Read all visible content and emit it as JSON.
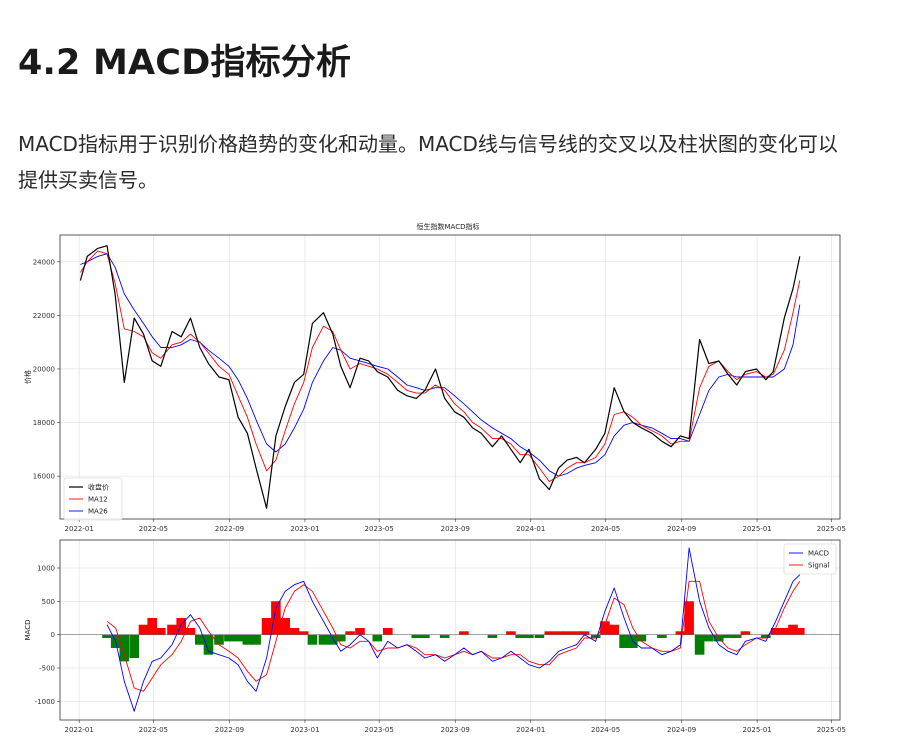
{
  "heading": "4.2 MACD指标分析",
  "description": "MACD指标用于识别价格趋势的变化和动量。MACD线与信号线的交叉以及柱状图的变化可以提供买卖信号。",
  "chart_data": [
    {
      "type": "line",
      "title": "恒生指数MACD指标",
      "ylabel": "价格",
      "xlabel": "",
      "x_ticks": [
        "2022-01",
        "2022-05",
        "2022-09",
        "2023-01",
        "2023-05",
        "2023-09",
        "2024-01",
        "2024-05",
        "2024-09",
        "2025-01",
        "2025-05"
      ],
      "y_ticks": [
        16000,
        18000,
        20000,
        22000,
        24000
      ],
      "ylim": [
        14400,
        25000
      ],
      "xlim": [
        "2021-12",
        "2025-05"
      ],
      "grid": true,
      "legend_position": "lower-left",
      "series": [
        {
          "name": "收盘价",
          "color": "#000000"
        },
        {
          "name": "MA12",
          "color": "#ff0000"
        },
        {
          "name": "MA26",
          "color": "#0000ff"
        }
      ],
      "x": [
        "2022-01-03",
        "2022-01-14",
        "2022-01-31",
        "2022-02-15",
        "2022-02-28",
        "2022-03-15",
        "2022-03-31",
        "2022-04-15",
        "2022-04-29",
        "2022-05-13",
        "2022-05-31",
        "2022-06-15",
        "2022-06-30",
        "2022-07-15",
        "2022-07-29",
        "2022-08-15",
        "2022-08-31",
        "2022-09-15",
        "2022-09-30",
        "2022-10-14",
        "2022-10-31",
        "2022-11-15",
        "2022-11-30",
        "2022-12-15",
        "2022-12-30",
        "2023-01-13",
        "2023-01-31",
        "2023-02-15",
        "2023-02-28",
        "2023-03-15",
        "2023-03-31",
        "2023-04-14",
        "2023-04-28",
        "2023-05-15",
        "2023-05-31",
        "2023-06-15",
        "2023-06-30",
        "2023-07-14",
        "2023-07-31",
        "2023-08-15",
        "2023-08-31",
        "2023-09-15",
        "2023-09-29",
        "2023-10-13",
        "2023-10-31",
        "2023-11-15",
        "2023-11-30",
        "2023-12-15",
        "2023-12-29",
        "2024-01-15",
        "2024-01-31",
        "2024-02-15",
        "2024-02-29",
        "2024-03-15",
        "2024-03-28",
        "2024-04-15",
        "2024-04-30",
        "2024-05-15",
        "2024-05-31",
        "2024-06-14",
        "2024-06-28",
        "2024-07-15",
        "2024-07-31",
        "2024-08-15",
        "2024-08-30",
        "2024-09-13",
        "2024-09-30",
        "2024-10-15",
        "2024-10-31",
        "2024-11-15",
        "2024-11-29",
        "2024-12-13",
        "2024-12-31",
        "2025-01-15",
        "2025-01-27",
        "2025-02-14",
        "2025-02-28",
        "2025-03-11"
      ],
      "close": [
        23300,
        24200,
        24500,
        24600,
        22800,
        19500,
        21900,
        21300,
        20300,
        20100,
        21400,
        21200,
        21900,
        20800,
        20200,
        19700,
        19600,
        18200,
        17600,
        16300,
        14800,
        17500,
        18600,
        19500,
        19800,
        21700,
        22100,
        21300,
        20100,
        19300,
        20400,
        20300,
        19900,
        19700,
        19200,
        19000,
        18900,
        19200,
        20000,
        18900,
        18400,
        18200,
        17800,
        17600,
        17100,
        17500,
        17000,
        16500,
        17000,
        15900,
        15500,
        16300,
        16600,
        16700,
        16500,
        17000,
        17600,
        19300,
        18400,
        18000,
        17800,
        17600,
        17300,
        17100,
        17500,
        17400,
        21100,
        20200,
        20300,
        19800,
        19400,
        19900,
        20000,
        19600,
        19900,
        21900,
        23000,
        24200
      ],
      "ma12": [
        23600,
        24000,
        24400,
        24300,
        23200,
        21500,
        21400,
        21200,
        20600,
        20400,
        20900,
        21000,
        21300,
        21000,
        20600,
        20100,
        19800,
        19000,
        18200,
        17200,
        16200,
        16600,
        17700,
        18700,
        19500,
        20800,
        21600,
        21400,
        20700,
        20000,
        20200,
        20100,
        20000,
        19800,
        19500,
        19200,
        19100,
        19100,
        19400,
        19200,
        18700,
        18400,
        18000,
        17800,
        17400,
        17400,
        17200,
        16800,
        16800,
        16300,
        15800,
        16000,
        16300,
        16500,
        16500,
        16700,
        17200,
        18300,
        18400,
        18200,
        17900,
        17700,
        17500,
        17200,
        17300,
        17300,
        19300,
        20100,
        20300,
        19900,
        19600,
        19800,
        19900,
        19700,
        19800,
        20700,
        22100,
        23300
      ],
      "ma26": [
        23900,
        24000,
        24200,
        24300,
        23800,
        22800,
        22200,
        21700,
        21200,
        20800,
        20800,
        20900,
        21100,
        21000,
        20700,
        20400,
        20100,
        19600,
        18900,
        18100,
        17200,
        16900,
        17200,
        17800,
        18500,
        19500,
        20300,
        20800,
        20700,
        20400,
        20300,
        20200,
        20100,
        20000,
        19700,
        19400,
        19300,
        19200,
        19300,
        19300,
        19000,
        18700,
        18400,
        18100,
        17800,
        17600,
        17400,
        17100,
        16900,
        16600,
        16200,
        16000,
        16100,
        16300,
        16400,
        16500,
        16800,
        17500,
        17900,
        18000,
        17900,
        17800,
        17600,
        17400,
        17400,
        17300,
        18300,
        19200,
        19700,
        19800,
        19700,
        19700,
        19700,
        19700,
        19700,
        20000,
        20900,
        22400
      ]
    },
    {
      "type": "line",
      "title": "",
      "ylabel": "MACD",
      "xlabel": "",
      "x_ticks": [
        "2022-01",
        "2022-05",
        "2022-09",
        "2023-01",
        "2023-05",
        "2023-09",
        "2024-01",
        "2024-05",
        "2024-09",
        "2025-01",
        "2025-05"
      ],
      "y_ticks": [
        -1000,
        -500,
        0,
        500,
        1000
      ],
      "ylim": [
        -1280,
        1420
      ],
      "grid": true,
      "legend_position": "upper-right",
      "series": [
        {
          "name": "MACD",
          "color": "#0000ff"
        },
        {
          "name": "Signal",
          "color": "#ff0000"
        }
      ],
      "histogram": {
        "positive_color": "#ff0000",
        "negative_color": "#008000"
      },
      "x": [
        "2022-02-15",
        "2022-03-01",
        "2022-03-15",
        "2022-03-31",
        "2022-04-15",
        "2022-04-29",
        "2022-05-13",
        "2022-05-31",
        "2022-06-15",
        "2022-06-30",
        "2022-07-15",
        "2022-07-29",
        "2022-08-15",
        "2022-08-31",
        "2022-09-15",
        "2022-09-30",
        "2022-10-14",
        "2022-10-31",
        "2022-11-15",
        "2022-11-30",
        "2022-12-15",
        "2022-12-30",
        "2023-01-13",
        "2023-01-31",
        "2023-02-15",
        "2023-02-28",
        "2023-03-15",
        "2023-03-31",
        "2023-04-14",
        "2023-04-28",
        "2023-05-15",
        "2023-05-31",
        "2023-06-15",
        "2023-06-30",
        "2023-07-14",
        "2023-07-31",
        "2023-08-15",
        "2023-08-31",
        "2023-09-15",
        "2023-09-29",
        "2023-10-13",
        "2023-10-31",
        "2023-11-15",
        "2023-11-30",
        "2023-12-15",
        "2023-12-29",
        "2024-01-15",
        "2024-01-31",
        "2024-02-15",
        "2024-02-29",
        "2024-03-15",
        "2024-03-28",
        "2024-04-15",
        "2024-04-30",
        "2024-05-15",
        "2024-05-31",
        "2024-06-14",
        "2024-06-28",
        "2024-07-15",
        "2024-07-31",
        "2024-08-15",
        "2024-08-30",
        "2024-09-13",
        "2024-09-30",
        "2024-10-15",
        "2024-10-31",
        "2024-11-15",
        "2024-11-29",
        "2024-12-13",
        "2024-12-31",
        "2025-01-15",
        "2025-01-31",
        "2025-02-14",
        "2025-02-28",
        "2025-03-11"
      ],
      "macd": [
        150,
        -100,
        -700,
        -1150,
        -700,
        -400,
        -350,
        -150,
        150,
        300,
        100,
        -250,
        -300,
        -350,
        -450,
        -700,
        -850,
        -350,
        400,
        650,
        750,
        800,
        500,
        200,
        -50,
        -250,
        -150,
        0,
        -100,
        -350,
        -100,
        -200,
        -150,
        -250,
        -350,
        -300,
        -400,
        -300,
        -200,
        -300,
        -250,
        -400,
        -350,
        -250,
        -350,
        -450,
        -500,
        -400,
        -250,
        -200,
        -150,
        0,
        -100,
        350,
        700,
        250,
        -100,
        -200,
        -200,
        -300,
        -250,
        -150,
        1300,
        500,
        100,
        -150,
        -250,
        -300,
        -100,
        -50,
        -100,
        200,
        500,
        800,
        900
      ],
      "signal": [
        200,
        100,
        -300,
        -800,
        -850,
        -650,
        -450,
        -300,
        -100,
        200,
        250,
        50,
        -150,
        -250,
        -350,
        -550,
        -700,
        -600,
        -100,
        400,
        650,
        750,
        650,
        350,
        100,
        -150,
        -200,
        -100,
        -100,
        -250,
        -200,
        -200,
        -150,
        -200,
        -300,
        -300,
        -350,
        -300,
        -250,
        -300,
        -250,
        -350,
        -350,
        -300,
        -300,
        -400,
        -450,
        -450,
        -300,
        -250,
        -200,
        -50,
        -50,
        150,
        550,
        450,
        100,
        -100,
        -200,
        -250,
        -250,
        -200,
        800,
        800,
        200,
        -50,
        -200,
        -250,
        -150,
        -50,
        -50,
        100,
        400,
        650,
        800
      ],
      "histogram_values": [
        -50,
        -200,
        -400,
        -350,
        150,
        250,
        100,
        150,
        250,
        100,
        -150,
        -300,
        -150,
        -100,
        -100,
        -150,
        -150,
        250,
        500,
        250,
        100,
        50,
        -150,
        -150,
        -150,
        -100,
        50,
        100,
        0,
        -100,
        100,
        0,
        0,
        -50,
        -50,
        0,
        -50,
        0,
        50,
        0,
        0,
        -50,
        0,
        50,
        -50,
        -50,
        -50,
        50,
        50,
        50,
        50,
        50,
        -50,
        200,
        150,
        -200,
        -200,
        -100,
        0,
        -50,
        0,
        50,
        500,
        -300,
        -100,
        -100,
        -50,
        -50,
        50,
        0,
        -50,
        100,
        100,
        150,
        100
      ]
    }
  ]
}
